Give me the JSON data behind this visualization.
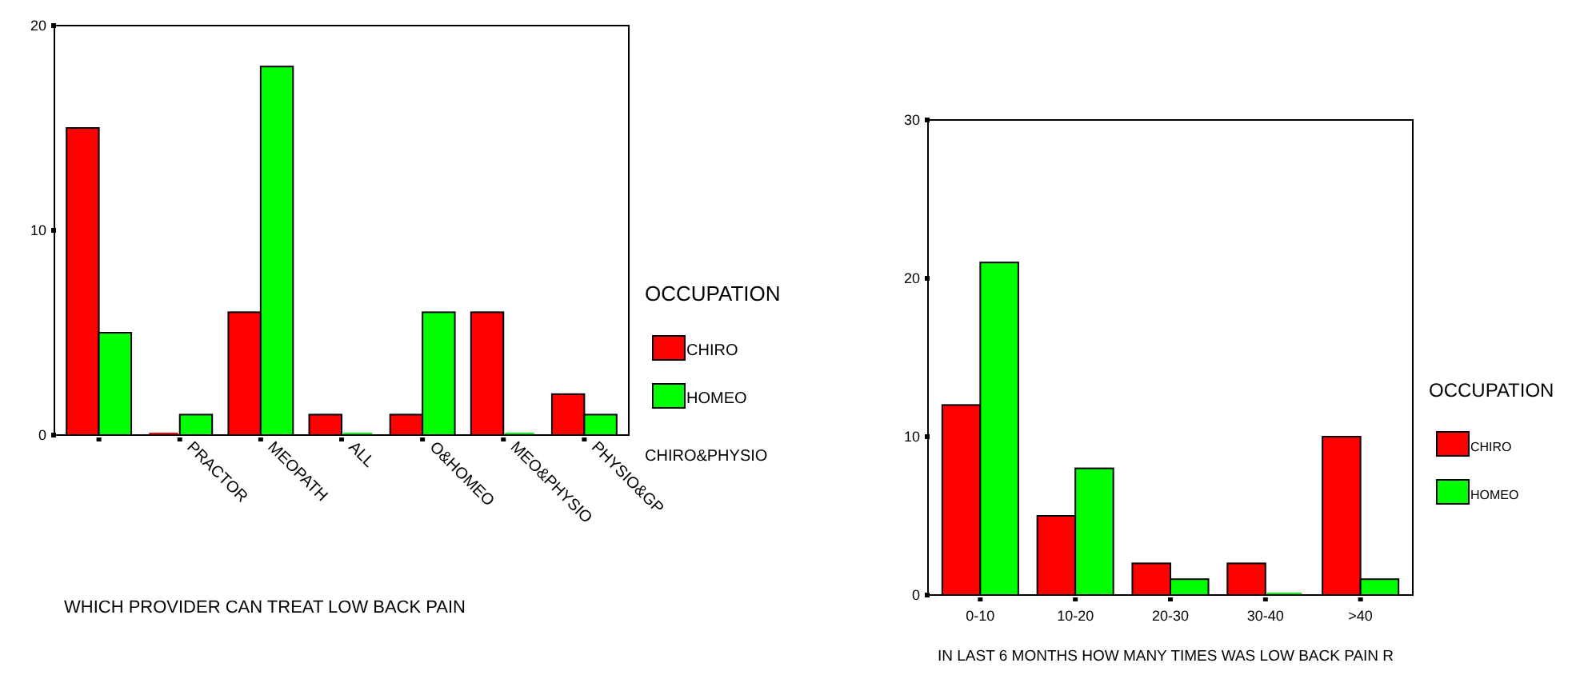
{
  "chart_data": [
    {
      "type": "bar",
      "xlabel": "WHICH PROVIDER CAN TREAT LOW BACK PAIN",
      "categories": [
        null,
        "PRACTOR",
        "MEOPATH",
        "ALL",
        "O&HOMEO",
        "MEO&PHYSIO",
        "PHYSIO&GP"
      ],
      "legend_title": "OCCUPATION",
      "legend": "right",
      "ylim": [
        0,
        20
      ],
      "yticks": [
        0,
        10,
        20
      ],
      "annotations": [
        "CHIRO&PHYSIO"
      ],
      "series": [
        {
          "name": "CHIRO",
          "color": "#ff0000",
          "values": [
            15,
            0,
            6,
            1,
            1,
            6,
            2
          ]
        },
        {
          "name": "HOMEO",
          "color": "#00ff00",
          "values": [
            5,
            1,
            18,
            0,
            6,
            0,
            1
          ]
        }
      ]
    },
    {
      "type": "bar",
      "xlabel": "IN LAST 6 MONTHS HOW MANY TIMES WAS LOW BACK PAIN R",
      "categories": [
        "0-10",
        "10-20",
        "20-30",
        "30-40",
        ">40"
      ],
      "legend_title": "OCCUPATION",
      "legend": "right",
      "ylim": [
        0,
        30
      ],
      "yticks": [
        0,
        10,
        20,
        30
      ],
      "series": [
        {
          "name": "CHIRO",
          "color": "#ff0000",
          "values": [
            12,
            5,
            2,
            2,
            10
          ]
        },
        {
          "name": "HOMEO",
          "color": "#00ff00",
          "values": [
            21,
            8,
            1,
            0,
            1
          ]
        }
      ]
    }
  ]
}
